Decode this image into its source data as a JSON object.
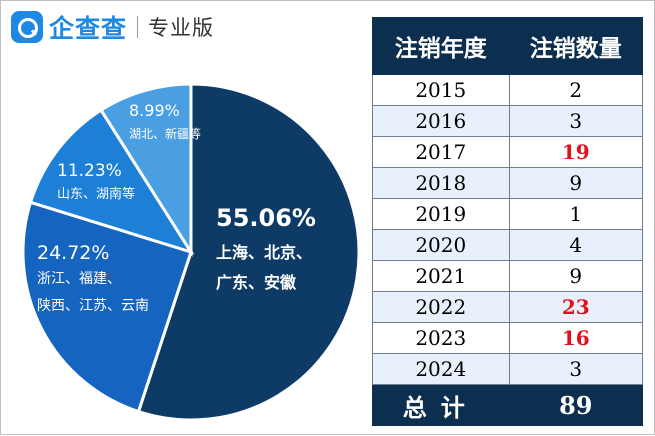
{
  "brand": {
    "name": "企查查",
    "edition": "专业版"
  },
  "chart_data": {
    "type": "pie",
    "slices": [
      {
        "percent_label": "55.06%",
        "value": 55.06,
        "lines": [
          "上海、北京、",
          "广东、安徽"
        ],
        "color": "#0d3b66"
      },
      {
        "percent_label": "24.72%",
        "value": 24.72,
        "lines": [
          "浙江、福建、",
          "陕西、江苏、云南"
        ],
        "color": "#1565c0"
      },
      {
        "percent_label": "11.23%",
        "value": 11.23,
        "lines": [
          "山东、湖南等"
        ],
        "color": "#1e7fd6"
      },
      {
        "percent_label": "8.99%",
        "value": 8.99,
        "lines": [
          "湖北、新疆等"
        ],
        "color": "#4a9fe3"
      }
    ]
  },
  "table": {
    "headers": [
      "注销年度",
      "注销数量"
    ],
    "rows": [
      {
        "year": "2015",
        "count": "2",
        "highlight": false
      },
      {
        "year": "2016",
        "count": "3",
        "highlight": false
      },
      {
        "year": "2017",
        "count": "19",
        "highlight": true
      },
      {
        "year": "2018",
        "count": "9",
        "highlight": false
      },
      {
        "year": "2019",
        "count": "1",
        "highlight": false
      },
      {
        "year": "2020",
        "count": "4",
        "highlight": false
      },
      {
        "year": "2021",
        "count": "9",
        "highlight": false
      },
      {
        "year": "2022",
        "count": "23",
        "highlight": true
      },
      {
        "year": "2023",
        "count": "16",
        "highlight": true
      },
      {
        "year": "2024",
        "count": "3",
        "highlight": false
      }
    ],
    "total_label": "总计",
    "total_value": "89"
  }
}
